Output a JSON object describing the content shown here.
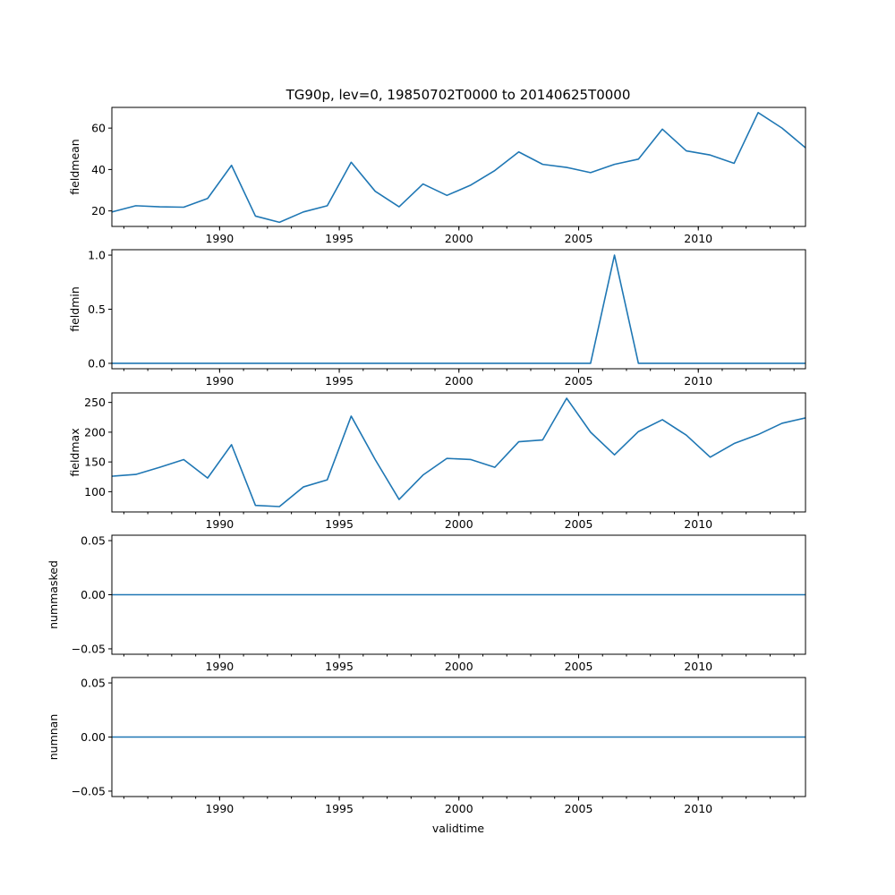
{
  "chart_data": {
    "type": "line",
    "title": "TG90p, lev=0, 19850702T0000 to 20140625T0000",
    "xlabel": "validtime",
    "x_range": [
      "1985-07-02",
      "2014-06-25"
    ],
    "x_ticks": [
      "1990",
      "1995",
      "2000",
      "2005",
      "2010"
    ],
    "x": [
      "1985-07-02",
      "1986-07-02",
      "1987-07-02",
      "1988-07-02",
      "1989-07-02",
      "1990-07-02",
      "1991-07-02",
      "1992-07-02",
      "1993-07-02",
      "1994-07-02",
      "1995-07-02",
      "1996-07-02",
      "1997-07-02",
      "1998-07-02",
      "1999-07-02",
      "2000-07-02",
      "2001-07-02",
      "2002-07-02",
      "2003-07-02",
      "2004-07-02",
      "2005-07-02",
      "2006-07-02",
      "2007-07-02",
      "2008-07-02",
      "2009-07-02",
      "2010-07-02",
      "2011-07-02",
      "2012-07-02",
      "2013-07-02",
      "2014-06-25"
    ],
    "grid": false,
    "panels": [
      {
        "ylabel": "fieldmean",
        "ylim": [
          12.5,
          70
        ],
        "y_ticks": [
          "20",
          "40",
          "60"
        ],
        "y_tick_values": [
          20,
          40,
          60
        ],
        "values": [
          19.5,
          22.5,
          22.0,
          21.8,
          26.0,
          42.0,
          17.5,
          14.5,
          19.5,
          22.5,
          43.5,
          29.5,
          22.0,
          33.0,
          27.5,
          32.5,
          39.5,
          48.5,
          42.5,
          41.0,
          38.5,
          42.5,
          45.0,
          59.5,
          49.0,
          47.0,
          43.0,
          67.5,
          60.0,
          50.5
        ]
      },
      {
        "ylabel": "fieldmin",
        "ylim": [
          -0.05,
          1.05
        ],
        "y_ticks": [
          "0.0",
          "0.5",
          "1.0"
        ],
        "y_tick_values": [
          0,
          0.5,
          1.0
        ],
        "values": [
          0,
          0,
          0,
          0,
          0,
          0,
          0,
          0,
          0,
          0,
          0,
          0,
          0,
          0,
          0,
          0,
          0,
          0,
          0,
          0,
          0,
          1,
          0,
          0,
          0,
          0,
          0,
          0,
          0,
          0
        ]
      },
      {
        "ylabel": "fieldmax",
        "ylim": [
          66,
          266
        ],
        "y_ticks": [
          "100",
          "150",
          "200",
          "250"
        ],
        "y_tick_values": [
          100,
          150,
          200,
          250
        ],
        "values": [
          126,
          129,
          141,
          154,
          123,
          179,
          77,
          75,
          108,
          120,
          227,
          154,
          87,
          128,
          156,
          154,
          141,
          184,
          187,
          257,
          200,
          162,
          201,
          221,
          195,
          158,
          181,
          196,
          215,
          224
        ]
      },
      {
        "ylabel": "nummasked",
        "ylim": [
          -0.055,
          0.055
        ],
        "y_ticks": [
          "−0.05",
          "0.00",
          "0.05"
        ],
        "y_tick_values": [
          -0.05,
          0,
          0.05
        ],
        "values": [
          0,
          0,
          0,
          0,
          0,
          0,
          0,
          0,
          0,
          0,
          0,
          0,
          0,
          0,
          0,
          0,
          0,
          0,
          0,
          0,
          0,
          0,
          0,
          0,
          0,
          0,
          0,
          0,
          0,
          0
        ]
      },
      {
        "ylabel": "numnan",
        "ylim": [
          -0.055,
          0.055
        ],
        "y_ticks": [
          "−0.05",
          "0.00",
          "0.05"
        ],
        "y_tick_values": [
          -0.05,
          0,
          0.05
        ],
        "values": [
          0,
          0,
          0,
          0,
          0,
          0,
          0,
          0,
          0,
          0,
          0,
          0,
          0,
          0,
          0,
          0,
          0,
          0,
          0,
          0,
          0,
          0,
          0,
          0,
          0,
          0,
          0,
          0,
          0,
          0
        ]
      }
    ],
    "colors": {
      "line": "#1f77b4",
      "axes": "#000000",
      "background": "#ffffff"
    }
  }
}
